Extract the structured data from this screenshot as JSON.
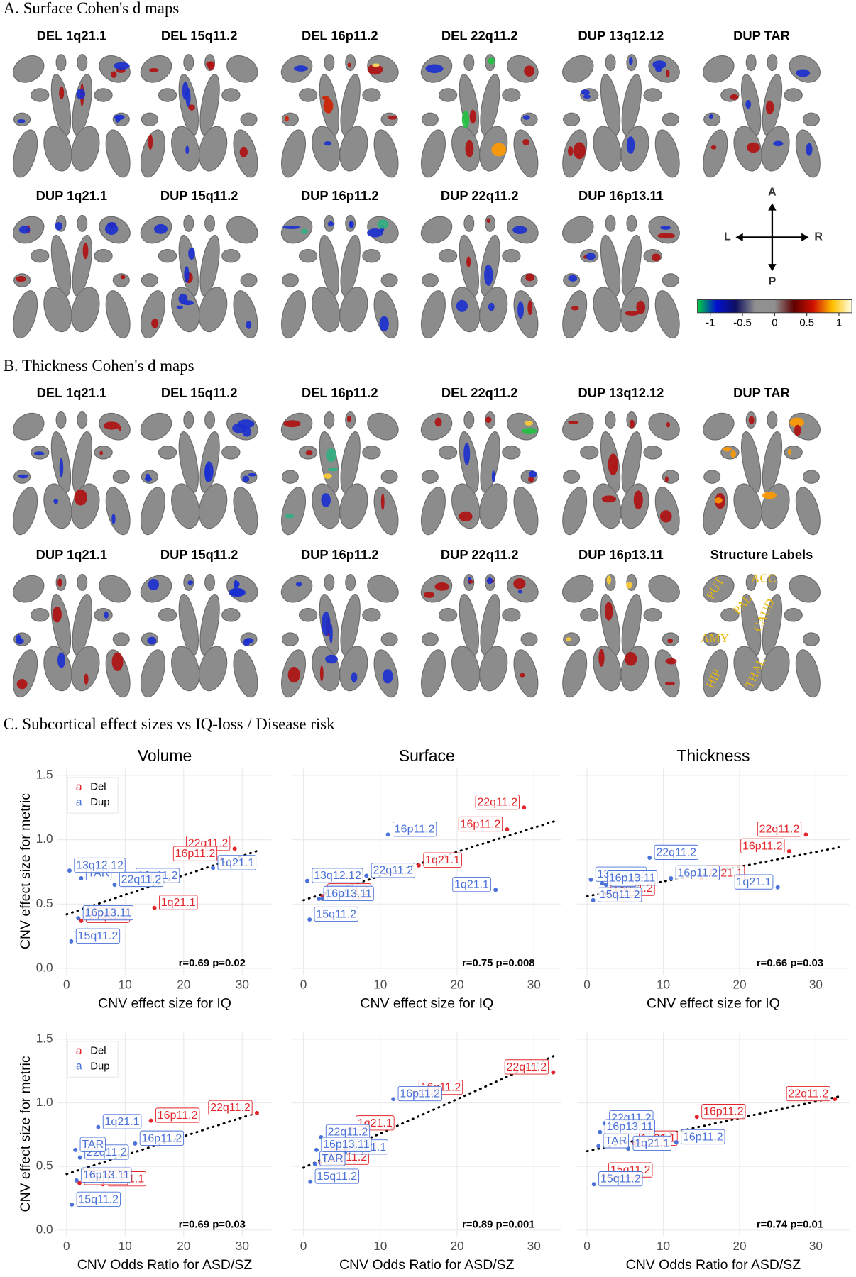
{
  "panel_a": {
    "title": "A. Surface Cohen's d maps",
    "maps": [
      "DEL 1q21.1",
      "DEL 15q11.2",
      "DEL 16p11.2",
      "DEL 22q11.2",
      "DUP 13q12.12",
      "DUP TAR",
      "DUP 1q21.1",
      "DUP 15q11.2",
      "DUP 16p11.2",
      "DUP 22q11.2",
      "DUP 16p13.11"
    ],
    "orientation": [
      "A",
      "P",
      "L",
      "R"
    ],
    "colorbar": {
      "lim": [
        -1.2,
        1.2
      ],
      "ticks": [
        -1,
        -0.5,
        0,
        0.5,
        1
      ],
      "colors": [
        "#00d040",
        "#0010d0",
        "#101060",
        "#909090",
        "#909090",
        "#600000",
        "#d01000",
        "#ffc000",
        "#ffffe8"
      ]
    }
  },
  "panel_b": {
    "title": "B. Thickness Cohen's d maps",
    "maps": [
      "DEL 1q21.1",
      "DEL 15q11.2",
      "DEL 16p11.2",
      "DEL 22q11.2",
      "DUP 13q12.12",
      "DUP TAR",
      "DUP 1q21.1",
      "DUP 15q11.2",
      "DUP 16p11.2",
      "DUP 22q11.2",
      "DUP 16p13.11"
    ],
    "structure_labels": {
      "title": "Structure Labels",
      "labels": [
        "PUT",
        "ACC",
        "PAL",
        "CAUD",
        "AMY",
        "HIP",
        "THAL"
      ]
    }
  },
  "panel_c": {
    "title": "C. Subcortical effect sizes vs IQ-loss / Disease risk"
  },
  "chart_data": [
    {
      "type": "scatter",
      "title": "Volume",
      "xlabel": "CNV effect size for IQ",
      "ylabel": "CNV effect size for metric",
      "xlim": [
        -1.5,
        35
      ],
      "ylim": [
        -0.05,
        1.56
      ],
      "xticks": [
        0,
        10,
        20,
        30
      ],
      "yticks": [
        {
          "value": 0,
          "label": "0.0"
        },
        0.5,
        {
          "value": 1,
          "label": "1.0"
        },
        1.5
      ],
      "grid": true,
      "legend": {
        "key": "a",
        "position": "top-left"
      },
      "series": [
        {
          "name": "Del",
          "color": "#e3262b",
          "labels": [
            "22q11.2",
            "16p11.2",
            "1q21.1",
            "15q11.2"
          ],
          "x": [
            28.7,
            26.5,
            15,
            2.5
          ],
          "values": [
            0.93,
            0.85,
            0.47,
            0.37
          ]
        },
        {
          "name": "Dup",
          "color": "#4a72d8",
          "labels": [
            "1q21.1",
            "16p11.2",
            "22q11.2",
            "TAR",
            "13q12.12",
            "16p13.11",
            "15q11.2"
          ],
          "x": [
            25,
            11,
            8.2,
            2.5,
            0.5,
            2,
            0.8
          ],
          "values": [
            0.78,
            0.68,
            0.65,
            0.7,
            0.76,
            0.39,
            0.21
          ]
        }
      ],
      "trend": {
        "x": [
          0,
          33
        ],
        "values": [
          0.42,
          0.92
        ]
      },
      "annotation": "r=0.69 p=0.02"
    },
    {
      "type": "scatter",
      "title": "Surface",
      "xlabel": "CNV effect size for IQ",
      "xlim": [
        -1.4,
        33.5
      ],
      "ylim": [
        -0.05,
        1.56
      ],
      "xticks": [
        0,
        10,
        20,
        30
      ],
      "yticks": [
        {
          "value": 0,
          "label": "0.0"
        },
        0.5,
        {
          "value": 1,
          "label": "1.0"
        },
        1.5
      ],
      "grid": true,
      "series": [
        {
          "name": "Del",
          "color": "#e3262b",
          "labels": [
            "22q11.2",
            "16p11.2",
            "1q21.1",
            "15q11.2"
          ],
          "x": [
            28.7,
            26.5,
            15,
            2.5
          ],
          "values": [
            1.25,
            1.08,
            0.8,
            0.56
          ]
        },
        {
          "name": "Dup",
          "color": "#4a72d8",
          "labels": [
            "1q21.1",
            "16p11.2",
            "22q11.2",
            "TAR",
            "13q12.12",
            "16p13.11",
            "15q11.2"
          ],
          "x": [
            25,
            11,
            8.2,
            2.5,
            0.5,
            2,
            0.8
          ],
          "values": [
            0.61,
            1.04,
            0.72,
            0.54,
            0.68,
            0.54,
            0.38
          ]
        }
      ],
      "trend": {
        "x": [
          0,
          33
        ],
        "values": [
          0.53,
          1.15
        ]
      },
      "annotation": "r=0.75 p=0.008"
    },
    {
      "type": "scatter",
      "title": "Thickness",
      "xlabel": "CNV effect size for IQ",
      "xlim": [
        -1.3,
        34.4
      ],
      "ylim": [
        -0.05,
        1.56
      ],
      "xticks": [
        0,
        10,
        20,
        30
      ],
      "yticks": [
        {
          "value": 0,
          "label": "0.0"
        },
        0.5,
        {
          "value": 1,
          "label": "1.0"
        },
        1.5
      ],
      "grid": true,
      "series": [
        {
          "name": "Del",
          "color": "#e3262b",
          "labels": [
            "22q11.2",
            "16p11.2",
            "1q21.1",
            "15q11.2"
          ],
          "x": [
            28.7,
            26.5,
            15,
            2.5
          ],
          "values": [
            1.04,
            0.91,
            0.7,
            0.58
          ]
        },
        {
          "name": "Dup",
          "color": "#4a72d8",
          "labels": [
            "1q21.1",
            "16p11.2",
            "22q11.2",
            "TAR",
            "13q12.12",
            "16p13.11",
            "15q11.2"
          ],
          "x": [
            25,
            11,
            8.2,
            2.5,
            0.5,
            2,
            0.8
          ],
          "values": [
            0.63,
            0.7,
            0.86,
            0.65,
            0.69,
            0.66,
            0.53
          ]
        }
      ],
      "trend": {
        "x": [
          0,
          33
        ],
        "values": [
          0.56,
          0.94
        ]
      },
      "annotation": "r=0.66 p=0.03"
    },
    {
      "type": "scatter",
      "xlabel": "CNV Odds Ratio for ASD/SZ",
      "ylabel": "CNV effect size for metric",
      "xlim": [
        -1.5,
        35
      ],
      "ylim": [
        -0.05,
        1.56
      ],
      "xticks": [
        0,
        10,
        20,
        30
      ],
      "yticks": [
        {
          "value": 0,
          "label": "0.0"
        },
        0.5,
        {
          "value": 1,
          "label": "1.0"
        },
        1.5
      ],
      "grid": true,
      "legend": {
        "key": "a",
        "position": "top-left"
      },
      "series": [
        {
          "name": "Del",
          "color": "#e3262b",
          "labels": [
            "22q11.2",
            "16p11.2",
            "1q21.1",
            "15q11.2"
          ],
          "x": [
            32.5,
            14.4,
            6.2,
            2.2
          ],
          "values": [
            0.92,
            0.86,
            0.36,
            0.37
          ]
        },
        {
          "name": "Dup",
          "color": "#4a72d8",
          "labels": [
            "1q21.1",
            "16p11.2",
            "22q11.2",
            "TAR",
            "16p13.11",
            "15q11.2"
          ],
          "x": [
            5.4,
            11.7,
            2.3,
            1.5,
            1.7,
            0.9
          ],
          "values": [
            0.81,
            0.68,
            0.57,
            0.63,
            0.39,
            0.2
          ]
        }
      ],
      "trend": {
        "x": [
          0,
          33
        ],
        "values": [
          0.44,
          0.93
        ]
      },
      "annotation": "r=0.69 p=0.03"
    },
    {
      "type": "scatter",
      "xlabel": "CNV Odds Ratio for ASD/SZ",
      "xlim": [
        -1.4,
        33.5
      ],
      "ylim": [
        -0.05,
        1.56
      ],
      "xticks": [
        0,
        10,
        20,
        30
      ],
      "yticks": [
        {
          "value": 0,
          "label": "0.0"
        },
        0.5,
        {
          "value": 1,
          "label": "1.0"
        },
        1.5
      ],
      "grid": true,
      "series": [
        {
          "name": "Del",
          "color": "#e3262b",
          "labels": [
            "22q11.2",
            "16p11.2",
            "1q21.1",
            "15q11.2"
          ],
          "x": [
            32.5,
            14.4,
            6.2,
            2.2
          ],
          "values": [
            1.24,
            1.08,
            0.8,
            0.53
          ]
        },
        {
          "name": "Dup",
          "color": "#4a72d8",
          "labels": [
            "1q21.1",
            "16p11.2",
            "22q11.2",
            "TAR",
            "16p13.11",
            "15q11.2"
          ],
          "x": [
            5.4,
            11.7,
            2.3,
            1.5,
            1.7,
            0.9
          ],
          "values": [
            0.61,
            1.03,
            0.73,
            0.52,
            0.63,
            0.38
          ]
        }
      ],
      "trend": {
        "x": [
          0,
          33
        ],
        "values": [
          0.49,
          1.38
        ]
      },
      "annotation": "r=0.89 p=0.001"
    },
    {
      "type": "scatter",
      "xlabel": "CNV Odds Ratio for ASD/SZ",
      "xlim": [
        -1.3,
        34.4
      ],
      "ylim": [
        -0.05,
        1.56
      ],
      "xticks": [
        0,
        10,
        20,
        30
      ],
      "yticks": [
        {
          "value": 0,
          "label": "0.0"
        },
        0.5,
        {
          "value": 1,
          "label": "1.0"
        },
        1.5
      ],
      "grid": true,
      "series": [
        {
          "name": "Del",
          "color": "#e3262b",
          "labels": [
            "22q11.2",
            "16p11.2",
            "1q21.1",
            "15q11.2"
          ],
          "x": [
            32.5,
            14.4,
            6.2,
            2.2
          ],
          "values": [
            1.03,
            0.89,
            0.68,
            0.43
          ]
        },
        {
          "name": "Dup",
          "color": "#4a72d8",
          "labels": [
            "1q21.1",
            "16p11.2",
            "22q11.2",
            "TAR",
            "16p13.11",
            "15q11.2"
          ],
          "x": [
            5.4,
            11.7,
            2.3,
            1.5,
            1.7,
            0.9
          ],
          "values": [
            0.64,
            0.69,
            0.84,
            0.66,
            0.77,
            0.36
          ]
        }
      ],
      "trend": {
        "x": [
          0,
          33
        ],
        "values": [
          0.62,
          1.05
        ]
      },
      "annotation": "r=0.74 p=0.01"
    }
  ]
}
